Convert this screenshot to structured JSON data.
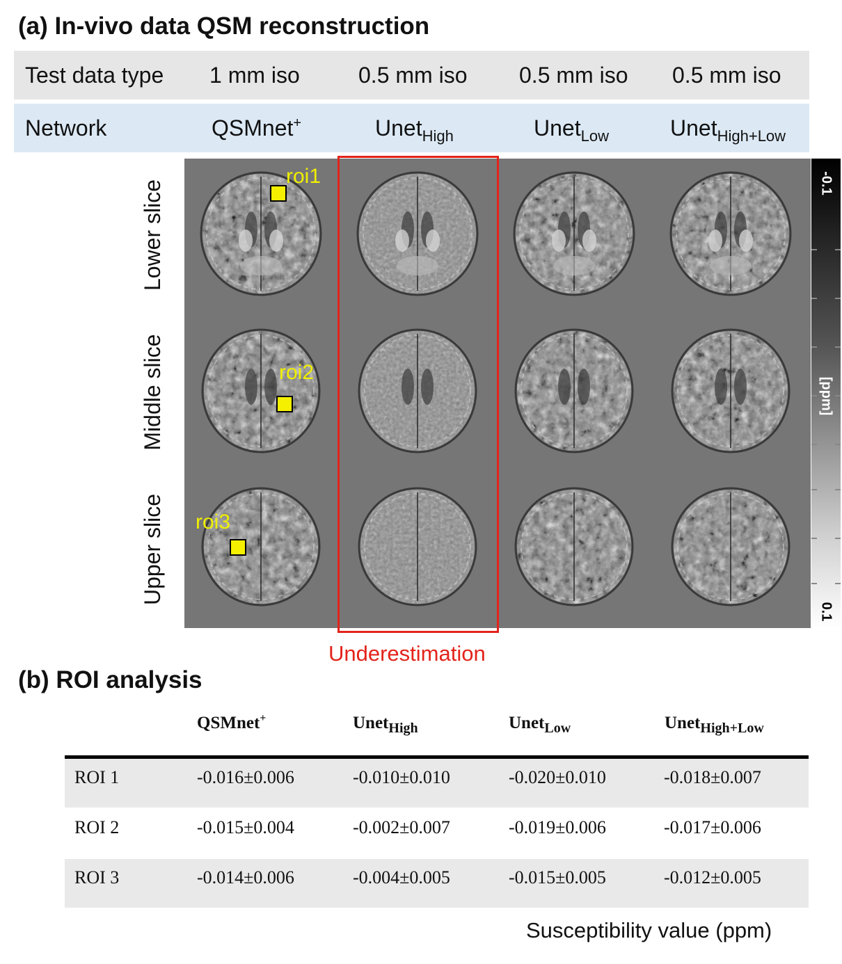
{
  "section_a": {
    "title": "(a) In-vivo data QSM reconstruction",
    "test_row": {
      "label": "Test data type",
      "cols": [
        "1 mm iso",
        "0.5 mm iso",
        "0.5 mm iso",
        "0.5 mm iso"
      ],
      "color": "#e6e6e6"
    },
    "network_row": {
      "label": "Network",
      "cols": [
        {
          "base": "QSMnet",
          "sup": "+",
          "sub": ""
        },
        {
          "base": "Unet",
          "sup": "",
          "sub": "High"
        },
        {
          "base": "Unet",
          "sup": "",
          "sub": "Low"
        },
        {
          "base": "Unet",
          "sup": "",
          "sub": "High+Low"
        }
      ],
      "color": "#dce9f5"
    },
    "row_labels": [
      "Lower slice",
      "Middle slice",
      "Upper slice"
    ],
    "roi_labels": [
      "roi1",
      "roi2",
      "roi3"
    ],
    "highlight_label": "Underestimation",
    "highlight_color": "#e3231b",
    "roi_color": "#f5f000",
    "colorbar": {
      "top": "-0.1",
      "bottom": "0.1",
      "unit": "[ppm]"
    }
  },
  "section_b": {
    "title": "(b) ROI analysis",
    "headers": [
      {
        "base": "QSMnet",
        "sup": "+",
        "sub": ""
      },
      {
        "base": "Unet",
        "sup": "",
        "sub": "High"
      },
      {
        "base": "Unet",
        "sup": "",
        "sub": "Low"
      },
      {
        "base": "Unet",
        "sup": "",
        "sub": "High+Low"
      }
    ],
    "rows": [
      {
        "label": "ROI 1",
        "values": [
          "-0.016±0.006",
          "-0.010±0.010",
          "-0.020±0.010",
          "-0.018±0.007"
        ]
      },
      {
        "label": "ROI 2",
        "values": [
          "-0.015±0.004",
          "-0.002±0.007",
          "-0.019±0.006",
          "-0.017±0.006"
        ]
      },
      {
        "label": "ROI 3",
        "values": [
          "-0.014±0.006",
          "-0.004±0.005",
          "-0.015±0.005",
          "-0.012±0.005"
        ]
      }
    ],
    "caption": "Susceptibility value (ppm)"
  }
}
